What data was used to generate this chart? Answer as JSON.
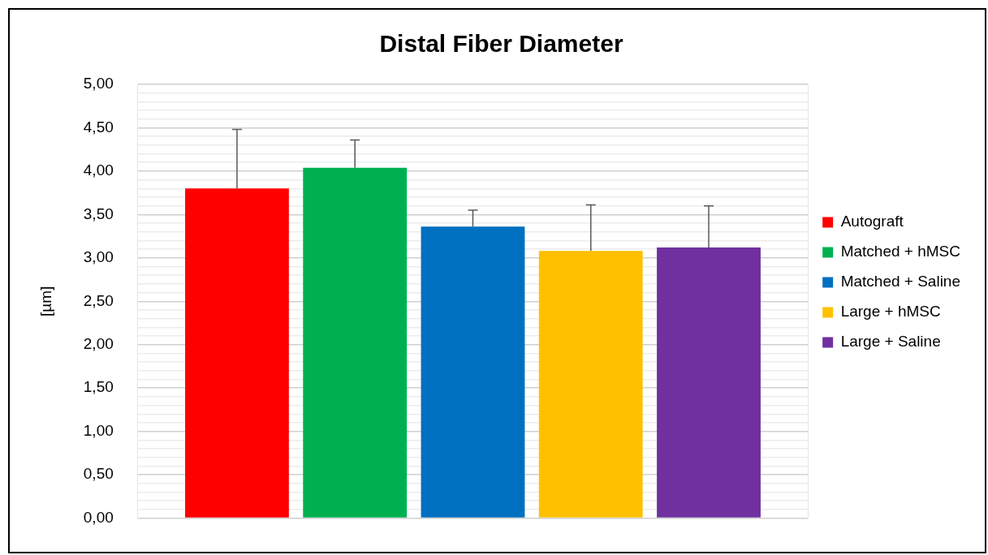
{
  "chart_data": {
    "type": "bar",
    "title": "Distal Fiber Diameter",
    "ylabel": "[µm]",
    "categories": [
      null
    ],
    "series": [
      {
        "name": "Autograft",
        "color": "#ff0000",
        "values": [
          3.8
        ],
        "errors": [
          [
            3.8,
            4.48
          ]
        ]
      },
      {
        "name": "Matched + hMSC",
        "color": "#00b050",
        "values": [
          4.04
        ],
        "errors": [
          [
            4.04,
            4.36
          ]
        ]
      },
      {
        "name": "Matched + Saline",
        "color": "#0070c0",
        "values": [
          3.36
        ],
        "errors": [
          [
            3.36,
            3.55
          ]
        ]
      },
      {
        "name": "Large + hMSC",
        "color": "#ffc000",
        "values": [
          3.08
        ],
        "errors": [
          [
            3.08,
            3.61
          ]
        ]
      },
      {
        "name": "Large + Saline",
        "color": "#7030a0",
        "values": [
          3.12
        ],
        "errors": [
          [
            3.12,
            3.6
          ]
        ]
      }
    ],
    "ylim": [
      0,
      5
    ],
    "yticks": [
      {
        "value": 0,
        "label": "0,00"
      },
      {
        "value": 0.1,
        "label": null
      },
      {
        "value": 0.2,
        "label": null
      },
      {
        "value": 0.3,
        "label": null
      },
      {
        "value": 0.4,
        "label": null
      },
      {
        "value": 0.5,
        "label": "0,50"
      },
      {
        "value": 0.6,
        "label": null
      },
      {
        "value": 0.7,
        "label": null
      },
      {
        "value": 0.8,
        "label": null
      },
      {
        "value": 0.9,
        "label": null
      },
      {
        "value": 1,
        "label": "1,00"
      },
      {
        "value": 1.1,
        "label": null
      },
      {
        "value": 1.2,
        "label": null
      },
      {
        "value": 1.3,
        "label": null
      },
      {
        "value": 1.4,
        "label": null
      },
      {
        "value": 1.5,
        "label": "1,50"
      },
      {
        "value": 1.6,
        "label": null
      },
      {
        "value": 1.7,
        "label": null
      },
      {
        "value": 1.8,
        "label": null
      },
      {
        "value": 1.9,
        "label": null
      },
      {
        "value": 2,
        "label": "2,00"
      },
      {
        "value": 2.1,
        "label": null
      },
      {
        "value": 2.2,
        "label": null
      },
      {
        "value": 2.3,
        "label": null
      },
      {
        "value": 2.4,
        "label": null
      },
      {
        "value": 2.5,
        "label": "2,50"
      },
      {
        "value": 2.6,
        "label": null
      },
      {
        "value": 2.7,
        "label": null
      },
      {
        "value": 2.8,
        "label": null
      },
      {
        "value": 2.9,
        "label": null
      },
      {
        "value": 3,
        "label": "3,00"
      },
      {
        "value": 3.1,
        "label": null
      },
      {
        "value": 3.2,
        "label": null
      },
      {
        "value": 3.3,
        "label": null
      },
      {
        "value": 3.4,
        "label": null
      },
      {
        "value": 3.5,
        "label": "3,50"
      },
      {
        "value": 3.6,
        "label": null
      },
      {
        "value": 3.7,
        "label": null
      },
      {
        "value": 3.8,
        "label": null
      },
      {
        "value": 3.9,
        "label": null
      },
      {
        "value": 4,
        "label": "4,00"
      },
      {
        "value": 4.1,
        "label": null
      },
      {
        "value": 4.2,
        "label": null
      },
      {
        "value": 4.3,
        "label": null
      },
      {
        "value": 4.4,
        "label": null
      },
      {
        "value": 4.5,
        "label": "4,50"
      },
      {
        "value": 4.6,
        "label": null
      },
      {
        "value": 4.7,
        "label": null
      },
      {
        "value": 4.8,
        "label": null
      },
      {
        "value": 4.9,
        "label": null
      },
      {
        "value": 5,
        "label": "5,00"
      }
    ],
    "grid": true,
    "legend": "right"
  }
}
